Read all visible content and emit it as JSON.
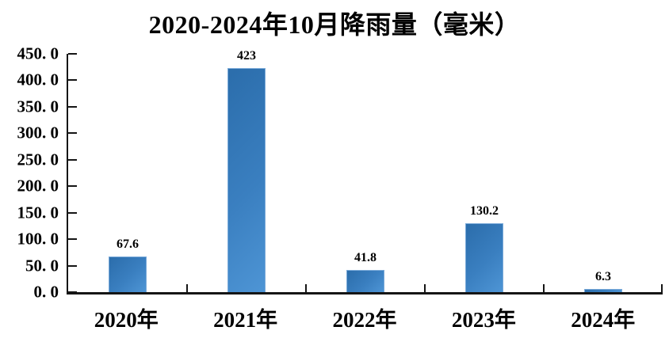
{
  "title": "2020-2024年10月降雨量（毫米）",
  "colors": {
    "background": "#FFFFFF",
    "bar_dark": "#2B6DAB",
    "bar_mid": "#3A7FC0",
    "bar_light": "#4E95D5",
    "bar_border": "#7AAAD9",
    "axis": "#151515",
    "text": "#000000"
  },
  "chart_data": {
    "type": "bar",
    "title": "2020-2024年10月降雨量（毫米）",
    "categories": [
      "2020年",
      "2021年",
      "2022年",
      "2023年",
      "2024年"
    ],
    "values": [
      67.6,
      423,
      41.8,
      130.2,
      6.3
    ],
    "value_labels": [
      "67.6",
      "423",
      "41.8",
      "130.2",
      "6.3"
    ],
    "xlabel": "",
    "ylabel": "",
    "ylim": [
      0,
      450
    ],
    "y_tick_step": 50,
    "y_tick_labels": [
      "450. 0",
      "400. 0",
      "350. 0",
      "300. 0",
      "250. 0",
      "200. 0",
      "150. 0",
      "100. 0",
      "50. 0",
      "0. 0"
    ],
    "grid": "off",
    "legend": "none"
  }
}
